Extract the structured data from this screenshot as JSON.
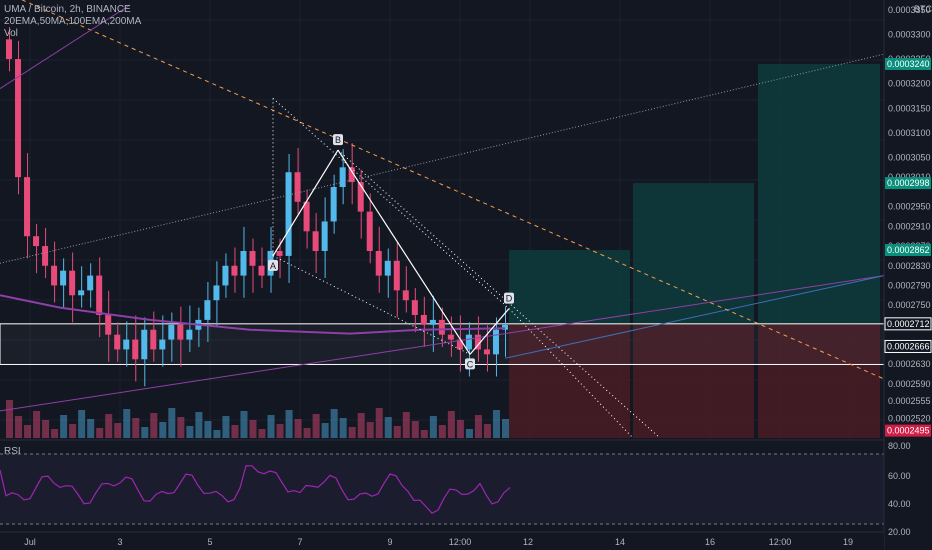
{
  "header": {
    "symbol_line": "UMA / Bitcoin, 2h, BINANCE",
    "indicators_line": "20EMA,50MA,100EMA,200MA",
    "volume_label": "Vol"
  },
  "rsi": {
    "label": "RSI",
    "levels": [
      "80.00",
      "60.00",
      "40.00",
      "20.00"
    ]
  },
  "currency": "BTC",
  "colors": {
    "background": "#131722",
    "up": "#53b9ea",
    "down": "#e84b7a",
    "ma_purple": "#9c27b0",
    "fib_orange": "#f6a04d",
    "pattern": "#ffffff",
    "profit_zone": "#0e3b3b",
    "loss_zone": "#4a1c25",
    "price_tag_green": "#0b8f7d",
    "price_tag_red": "#d01e48"
  },
  "chart_data": {
    "type": "candlestick",
    "title": "UMA / Bitcoin, 2h, BINANCE",
    "ylim": [
      0.000248,
      0.000337
    ],
    "y_ticks": [
      "0.0003350",
      "0.0003300",
      "0.0003250",
      "0.0003200",
      "0.0003150",
      "0.0003100",
      "0.0003050",
      "0.0003010",
      "0.0002950",
      "0.0002910",
      "0.0002870",
      "0.0002830",
      "0.0002790",
      "0.0002750",
      "0.0002710",
      "0.0002666",
      "0.0002630",
      "0.0002590",
      "0.0002555",
      "0.0002520",
      "0.0002495"
    ],
    "x_ticks": [
      "Jul",
      "3",
      "5",
      "7",
      "9",
      "12:00",
      "12",
      "14",
      "16",
      "12:00",
      "19"
    ],
    "price_tags": [
      {
        "value": "0.0003240",
        "kind": "green"
      },
      {
        "value": "0.0002998",
        "kind": "green"
      },
      {
        "value": "0.0002862",
        "kind": "green"
      },
      {
        "value": "0.0002712",
        "kind": "outline"
      },
      {
        "value": "0.0002666",
        "kind": "outline"
      },
      {
        "value": "0.0002495",
        "kind": "red"
      }
    ],
    "pattern_points": [
      {
        "label": "A",
        "price": 0.000285
      },
      {
        "label": "B",
        "price": 0.0003065
      },
      {
        "label": "C",
        "price": 0.000265
      },
      {
        "label": "D",
        "price": 0.0002743
      }
    ],
    "candles_close": [
      0.000325,
      0.000301,
      0.000289,
      0.000287,
      0.000283,
      0.000279,
      0.000282,
      0.000277,
      0.000278,
      0.000281,
      0.000273,
      0.000269,
      0.000266,
      0.000268,
      0.000264,
      0.00027,
      0.000266,
      0.000268,
      0.000271,
      0.000268,
      0.00027,
      0.000272,
      0.000276,
      0.000279,
      0.000283,
      0.000281,
      0.000286,
      0.000283,
      0.000281,
      0.000286,
      0.000285,
      0.000302,
      0.000296,
      0.00029,
      0.000286,
      0.000292,
      0.000299,
      0.000303,
      0.0003,
      0.000294,
      0.000286,
      0.000281,
      0.000284,
      0.000278,
      0.000276,
      0.000273,
      0.000271,
      0.000272,
      0.000269,
      0.000268,
      0.000266,
      0.000269,
      0.000266,
      0.000265,
      0.00027,
      0.000271
    ],
    "trade_zones": [
      {
        "entry": 0.0002712,
        "target": 0.0002862,
        "stop": 0.0002495
      },
      {
        "entry": 0.0002712,
        "target": 0.0002998,
        "stop": 0.0002495
      },
      {
        "entry": 0.0002712,
        "target": 0.000324,
        "stop": 0.0002495
      }
    ]
  }
}
